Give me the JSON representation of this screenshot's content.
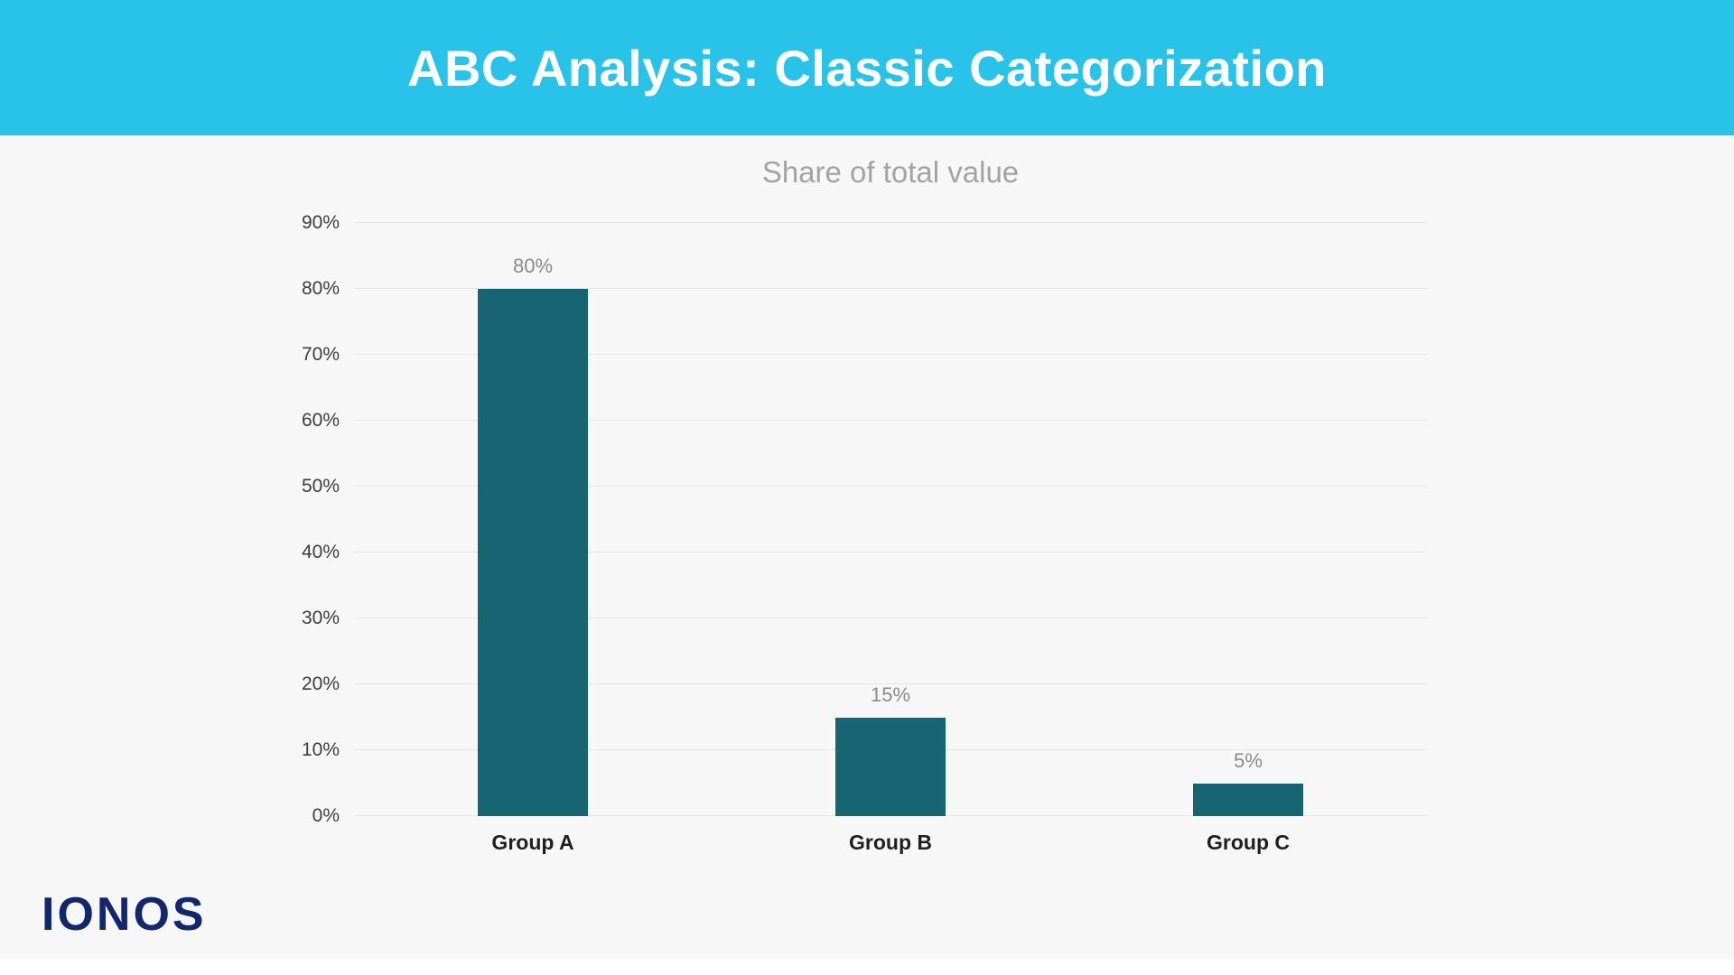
{
  "header": {
    "title": "ABC Analysis: Classic Categorization"
  },
  "chart_data": {
    "type": "bar",
    "title": "Share of total value",
    "categories": [
      "Group A",
      "Group B",
      "Group C"
    ],
    "values": [
      80,
      15,
      5
    ],
    "value_labels": [
      "80%",
      "15%",
      "5%"
    ],
    "xlabel": "",
    "ylabel": "",
    "ylim": [
      0,
      90
    ],
    "ytick_step": 10,
    "ytick_labels": [
      "0%",
      "10%",
      "20%",
      "30%",
      "40%",
      "50%",
      "60%",
      "70%",
      "80%",
      "90%"
    ],
    "grid": true,
    "legend": "none",
    "bar_color": "#176472"
  },
  "branding": {
    "logo_text": "IONOS"
  },
  "colors": {
    "header_background": "#29C2E8",
    "header_text": "#FFFFFF",
    "bar": "#176472",
    "logo": "#12286B",
    "page_background": "#F7F7F8"
  }
}
